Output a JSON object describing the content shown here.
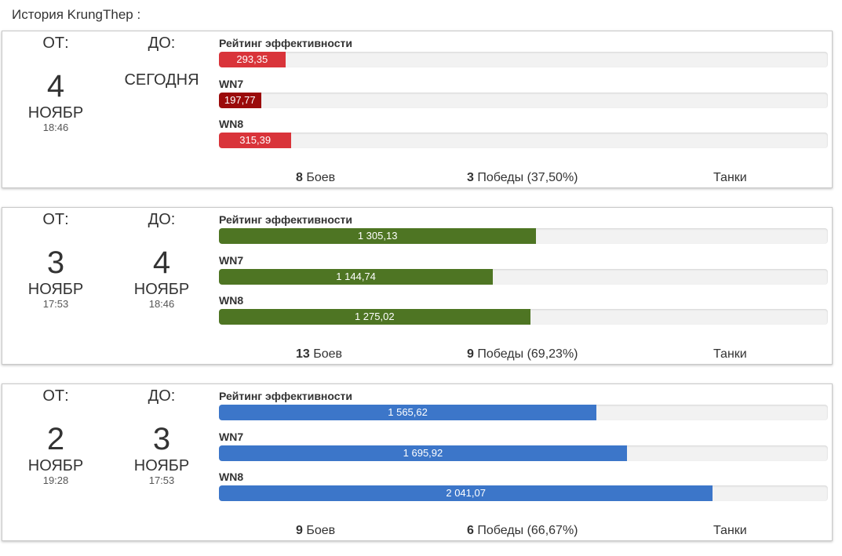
{
  "page": {
    "title": "История KrungThep :"
  },
  "labels": {
    "from": "ОТ:",
    "to": "ДО:",
    "rating": "Рейтинг эффективности",
    "wn7": "WN7",
    "wn8": "WN8",
    "battles_suffix": "Боев",
    "wins_prefix": "Победы",
    "tanks": "Танки"
  },
  "colors": {
    "red": "#d9343a",
    "darkred": "#9b0b0b",
    "green": "#4e7523",
    "blue": "#3c76c9",
    "track": "#f2f2f2"
  },
  "sessions": [
    {
      "from": {
        "day": "4",
        "month": "НОЯБР",
        "time": "18:46"
      },
      "to": {
        "today": "СЕГОДНЯ"
      },
      "rating": {
        "value": "293,35",
        "fill": 0.109,
        "color": "red"
      },
      "wn7": {
        "value": "197,77",
        "fill": 0.069,
        "color": "darkred"
      },
      "wn8": {
        "value": "315,39",
        "fill": 0.119,
        "color": "red"
      },
      "battles": "8",
      "wins": "3",
      "wins_pct": "(37,50%)"
    },
    {
      "from": {
        "day": "3",
        "month": "НОЯБР",
        "time": "17:53"
      },
      "to": {
        "day": "4",
        "month": "НОЯБР",
        "time": "18:46"
      },
      "rating": {
        "value": "1 305,13",
        "fill": 0.521,
        "color": "green"
      },
      "wn7": {
        "value": "1 144,74",
        "fill": 0.45,
        "color": "green"
      },
      "wn8": {
        "value": "1 275,02",
        "fill": 0.511,
        "color": "green"
      },
      "battles": "13",
      "wins": "9",
      "wins_pct": "(69,23%)"
    },
    {
      "from": {
        "day": "2",
        "month": "НОЯБР",
        "time": "19:28"
      },
      "to": {
        "day": "3",
        "month": "НОЯБР",
        "time": "17:53"
      },
      "rating": {
        "value": "1 565,62",
        "fill": 0.62,
        "color": "blue"
      },
      "wn7": {
        "value": "1 695,92",
        "fill": 0.67,
        "color": "blue"
      },
      "wn8": {
        "value": "2 041,07",
        "fill": 0.811,
        "color": "blue"
      },
      "battles": "9",
      "wins": "6",
      "wins_pct": "(66,67%)"
    }
  ]
}
